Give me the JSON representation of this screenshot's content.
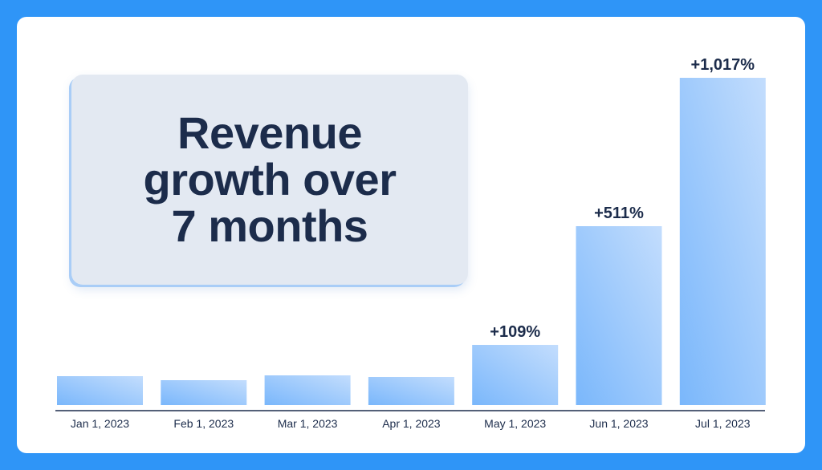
{
  "chart_data": {
    "type": "bar",
    "title": "Revenue\ngrowth over\n7 months",
    "categories": [
      "Jan 1, 2023",
      "Feb 1, 2023",
      "Mar 1, 2023",
      "Apr 1, 2023",
      "May 1, 2023",
      "Jun 1, 2023",
      "Jul 1, 2023"
    ],
    "values": [
      36,
      31,
      37,
      35,
      75,
      223,
      408
    ],
    "data_labels": [
      "",
      "",
      "",
      "",
      "+109%",
      "+511%",
      "+1,017%"
    ],
    "xlabel": "",
    "ylabel": "",
    "ylim": [
      0,
      408
    ],
    "grid": false,
    "legend": "none"
  },
  "colors": {
    "background": "#2f95f7",
    "card": "#ffffff",
    "title_box": "#e3e9f2",
    "title_text": "#1c2c4b",
    "bar_start": "#7ab7fb",
    "bar_end": "#c3ddfd",
    "axis": "#1c2c4b"
  }
}
